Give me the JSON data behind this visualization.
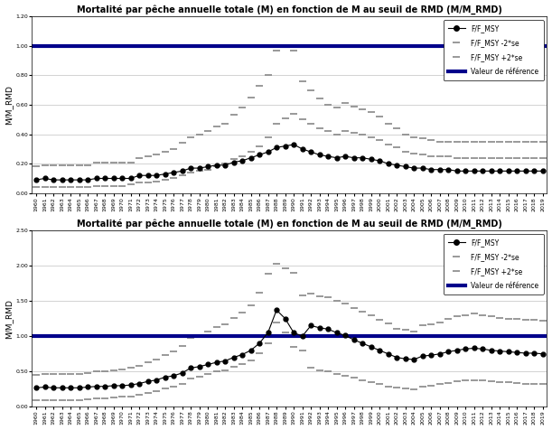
{
  "title": "Mortalité par pêche annuelle totale (M) en fonction de M au seuil de RMD (M/M_RMD)",
  "ylabel": "M/M_RMD",
  "reference_value": 1.0,
  "reference_label": "Valeur de référence",
  "legend_main": "F/F_MSY",
  "legend_minus": "F/F_MSY -2*se",
  "legend_plus": "F/F_MSY +2*se",
  "ref_color": "#00008B",
  "main_color": "#000000",
  "dash_color": "#888888",
  "plot1": {
    "ylim": [
      0.0,
      1.2
    ],
    "yticks": [
      0.0,
      0.2,
      0.4,
      0.6,
      0.8,
      1.0,
      1.2
    ],
    "main_y": [
      0.09,
      0.1,
      0.09,
      0.09,
      0.09,
      0.09,
      0.09,
      0.1,
      0.1,
      0.1,
      0.1,
      0.1,
      0.12,
      0.12,
      0.12,
      0.13,
      0.14,
      0.15,
      0.17,
      0.17,
      0.18,
      0.19,
      0.19,
      0.21,
      0.22,
      0.24,
      0.26,
      0.28,
      0.31,
      0.32,
      0.33,
      0.3,
      0.28,
      0.26,
      0.25,
      0.24,
      0.25,
      0.24,
      0.24,
      0.23,
      0.22,
      0.2,
      0.19,
      0.18,
      0.17,
      0.17,
      0.16,
      0.16,
      0.16,
      0.15,
      0.15,
      0.15,
      0.15,
      0.15,
      0.15,
      0.15,
      0.15,
      0.15,
      0.15,
      0.15
    ],
    "minus_y": [
      0.04,
      0.04,
      0.04,
      0.04,
      0.04,
      0.04,
      0.04,
      0.05,
      0.05,
      0.05,
      0.05,
      0.06,
      0.07,
      0.07,
      0.08,
      0.09,
      0.1,
      0.12,
      0.14,
      0.15,
      0.16,
      0.18,
      0.2,
      0.23,
      0.25,
      0.28,
      0.32,
      0.38,
      0.47,
      0.51,
      0.54,
      0.5,
      0.47,
      0.44,
      0.42,
      0.4,
      0.42,
      0.41,
      0.4,
      0.38,
      0.36,
      0.33,
      0.31,
      0.28,
      0.27,
      0.26,
      0.25,
      0.25,
      0.25,
      0.24,
      0.24,
      0.24,
      0.24,
      0.24,
      0.24,
      0.24,
      0.24,
      0.24,
      0.24,
      0.24
    ],
    "plus_y": [
      0.18,
      0.19,
      0.19,
      0.19,
      0.19,
      0.19,
      0.19,
      0.21,
      0.21,
      0.21,
      0.21,
      0.21,
      0.24,
      0.25,
      0.26,
      0.28,
      0.3,
      0.34,
      0.38,
      0.4,
      0.42,
      0.45,
      0.47,
      0.53,
      0.58,
      0.65,
      0.73,
      0.8,
      0.97,
      1.0,
      0.97,
      0.76,
      0.7,
      0.64,
      0.6,
      0.58,
      0.61,
      0.59,
      0.57,
      0.55,
      0.52,
      0.47,
      0.44,
      0.4,
      0.38,
      0.37,
      0.36,
      0.35,
      0.35,
      0.35,
      0.35,
      0.35,
      0.35,
      0.35,
      0.35,
      0.35,
      0.35,
      0.35,
      0.35,
      0.35
    ]
  },
  "plot2": {
    "ylim": [
      0.0,
      2.5
    ],
    "yticks": [
      0.0,
      0.5,
      1.0,
      1.5,
      2.0,
      2.5
    ],
    "main_y": [
      0.27,
      0.28,
      0.27,
      0.27,
      0.27,
      0.27,
      0.28,
      0.29,
      0.29,
      0.3,
      0.3,
      0.31,
      0.33,
      0.36,
      0.38,
      0.42,
      0.44,
      0.48,
      0.55,
      0.57,
      0.6,
      0.63,
      0.65,
      0.7,
      0.74,
      0.8,
      0.9,
      1.05,
      1.37,
      1.25,
      1.05,
      1.0,
      1.15,
      1.12,
      1.1,
      1.05,
      1.01,
      0.95,
      0.9,
      0.85,
      0.8,
      0.75,
      0.7,
      0.68,
      0.67,
      0.72,
      0.73,
      0.75,
      0.78,
      0.8,
      0.82,
      0.83,
      0.82,
      0.8,
      0.79,
      0.78,
      0.77,
      0.76,
      0.76,
      0.75
    ],
    "minus_y": [
      0.1,
      0.1,
      0.1,
      0.1,
      0.1,
      0.1,
      0.11,
      0.12,
      0.12,
      0.13,
      0.14,
      0.15,
      0.17,
      0.2,
      0.22,
      0.26,
      0.28,
      0.33,
      0.4,
      0.43,
      0.46,
      0.5,
      0.52,
      0.57,
      0.6,
      0.66,
      0.76,
      0.9,
      1.2,
      1.05,
      0.85,
      0.8,
      0.55,
      0.52,
      0.5,
      0.47,
      0.44,
      0.42,
      0.38,
      0.35,
      0.32,
      0.29,
      0.27,
      0.26,
      0.25,
      0.29,
      0.3,
      0.32,
      0.34,
      0.36,
      0.37,
      0.38,
      0.37,
      0.36,
      0.35,
      0.35,
      0.34,
      0.33,
      0.33,
      0.32
    ],
    "plus_y": [
      0.45,
      0.47,
      0.47,
      0.47,
      0.47,
      0.47,
      0.48,
      0.5,
      0.5,
      0.52,
      0.53,
      0.55,
      0.58,
      0.63,
      0.67,
      0.74,
      0.78,
      0.86,
      0.98,
      1.02,
      1.07,
      1.13,
      1.17,
      1.26,
      1.33,
      1.44,
      1.62,
      1.89,
      2.03,
      1.96,
      1.9,
      1.58,
      1.6,
      1.57,
      1.55,
      1.5,
      1.46,
      1.4,
      1.35,
      1.3,
      1.23,
      1.18,
      1.1,
      1.09,
      1.07,
      1.15,
      1.17,
      1.2,
      1.25,
      1.28,
      1.3,
      1.32,
      1.3,
      1.28,
      1.26,
      1.25,
      1.24,
      1.23,
      1.23,
      1.22
    ]
  },
  "n_points": 60,
  "background_color": "#ffffff",
  "grid_color": "#c0c0c0"
}
